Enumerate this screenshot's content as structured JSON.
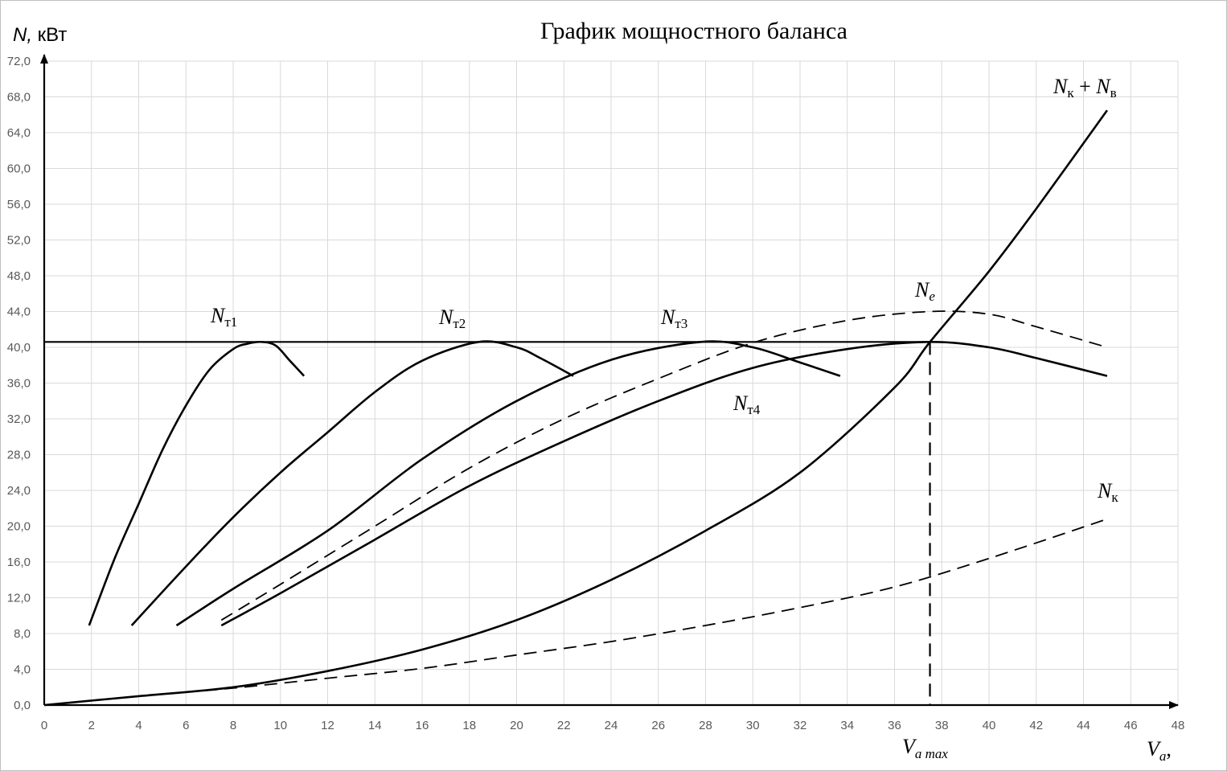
{
  "chart_data": {
    "type": "line",
    "title": "График мощностного баланса",
    "ylabel": {
      "symbol": "N,",
      "unit": " кВт"
    },
    "xlabel": {
      "symbol": "V",
      "sub": "a",
      "suffix": ","
    },
    "xlim": [
      0,
      48
    ],
    "ylim": [
      0,
      72
    ],
    "x_ticks": [
      "0",
      "2",
      "4",
      "6",
      "8",
      "10",
      "12",
      "14",
      "16",
      "18",
      "20",
      "22",
      "24",
      "26",
      "28",
      "30",
      "32",
      "34",
      "36",
      "38",
      "40",
      "42",
      "44",
      "46",
      "48"
    ],
    "y_ticks": [
      "0,0",
      "4,0",
      "8,0",
      "12,0",
      "16,0",
      "20,0",
      "24,0",
      "28,0",
      "32,0",
      "36,0",
      "40,0",
      "44,0",
      "48,0",
      "52,0",
      "56,0",
      "60,0",
      "64,0",
      "68,0",
      "72,0"
    ],
    "grid": true,
    "hline_y": 40.6,
    "vmax_x": 37.5,
    "vmax_label": {
      "symbol": "V",
      "sub": "a max"
    },
    "series": [
      {
        "name": "Nт1",
        "style": "solid",
        "x": [
          1.9,
          3.0,
          4.0,
          5.0,
          6.0,
          7.0,
          8.0,
          8.6,
          9.2,
          9.8,
          10.4,
          11.0
        ],
        "y": [
          8.9,
          16.5,
          22.5,
          28.5,
          33.5,
          37.5,
          39.8,
          40.4,
          40.6,
          40.2,
          38.5,
          36.8
        ]
      },
      {
        "name": "Nт2",
        "style": "solid",
        "x": [
          3.7,
          6.0,
          8.0,
          10.0,
          12.0,
          14.0,
          16.0,
          18.4,
          20.0,
          21.0,
          22.4
        ],
        "y": [
          8.9,
          15.5,
          21.0,
          26.0,
          30.5,
          35.0,
          38.5,
          40.6,
          40.0,
          38.8,
          36.8
        ]
      },
      {
        "name": "Nт3",
        "style": "solid",
        "x": [
          5.6,
          8.0,
          12.0,
          16.0,
          20.0,
          24.0,
          27.8,
          30.0,
          32.0,
          33.7
        ],
        "y": [
          8.9,
          13.0,
          19.5,
          27.5,
          34.0,
          38.6,
          40.6,
          40.0,
          38.3,
          36.8
        ]
      },
      {
        "name": "Nт4",
        "style": "solid",
        "x": [
          7.5,
          10.0,
          14.0,
          18.0,
          22.0,
          26.0,
          30.0,
          34.0,
          37.5,
          40.0,
          42.0,
          45.0
        ],
        "y": [
          8.9,
          12.5,
          18.5,
          24.5,
          29.5,
          34.0,
          37.7,
          39.8,
          40.6,
          40.0,
          38.8,
          36.8
        ]
      },
      {
        "name": "Ne",
        "style": "dashed",
        "x": [
          7.5,
          10.0,
          14.0,
          18.0,
          22.0,
          26.0,
          30.0,
          34.0,
          37.5,
          40.0,
          42.0,
          45.0
        ],
        "y": [
          9.5,
          13.5,
          20.0,
          26.5,
          32.0,
          36.5,
          40.5,
          43.0,
          44.0,
          43.7,
          42.3,
          40.0
        ]
      },
      {
        "name": "Nк + Nв",
        "style": "solid",
        "x": [
          0,
          4,
          8,
          12,
          16,
          20,
          24,
          28,
          32,
          36,
          37.5,
          40,
          42,
          45
        ],
        "y": [
          0,
          1.0,
          2.0,
          3.8,
          6.2,
          9.5,
          14.0,
          19.5,
          26.0,
          35.5,
          40.6,
          48.5,
          55.5,
          66.5
        ]
      },
      {
        "name": "Nк",
        "style": "dashed",
        "x": [
          0,
          4,
          8,
          12,
          16,
          20,
          24,
          28,
          32,
          36,
          40,
          45
        ],
        "y": [
          0,
          1.0,
          1.9,
          3.0,
          4.1,
          5.6,
          7.1,
          8.9,
          10.9,
          13.2,
          16.4,
          20.8
        ]
      }
    ],
    "labels": {
      "t1": {
        "symbol": "N",
        "sub": "т1"
      },
      "t2": {
        "symbol": "N",
        "sub": "т2"
      },
      "t3": {
        "symbol": "N",
        "sub": "т3"
      },
      "t4": {
        "symbol": "N",
        "sub": "т4"
      },
      "ne": {
        "symbol": "N",
        "sub": "e"
      },
      "nkv": {
        "symbol": "N",
        "sub1": "к",
        "plus": " + ",
        "symbol2": "N",
        "sub2": "в"
      },
      "nk": {
        "symbol": "N",
        "sub": "к"
      }
    }
  }
}
